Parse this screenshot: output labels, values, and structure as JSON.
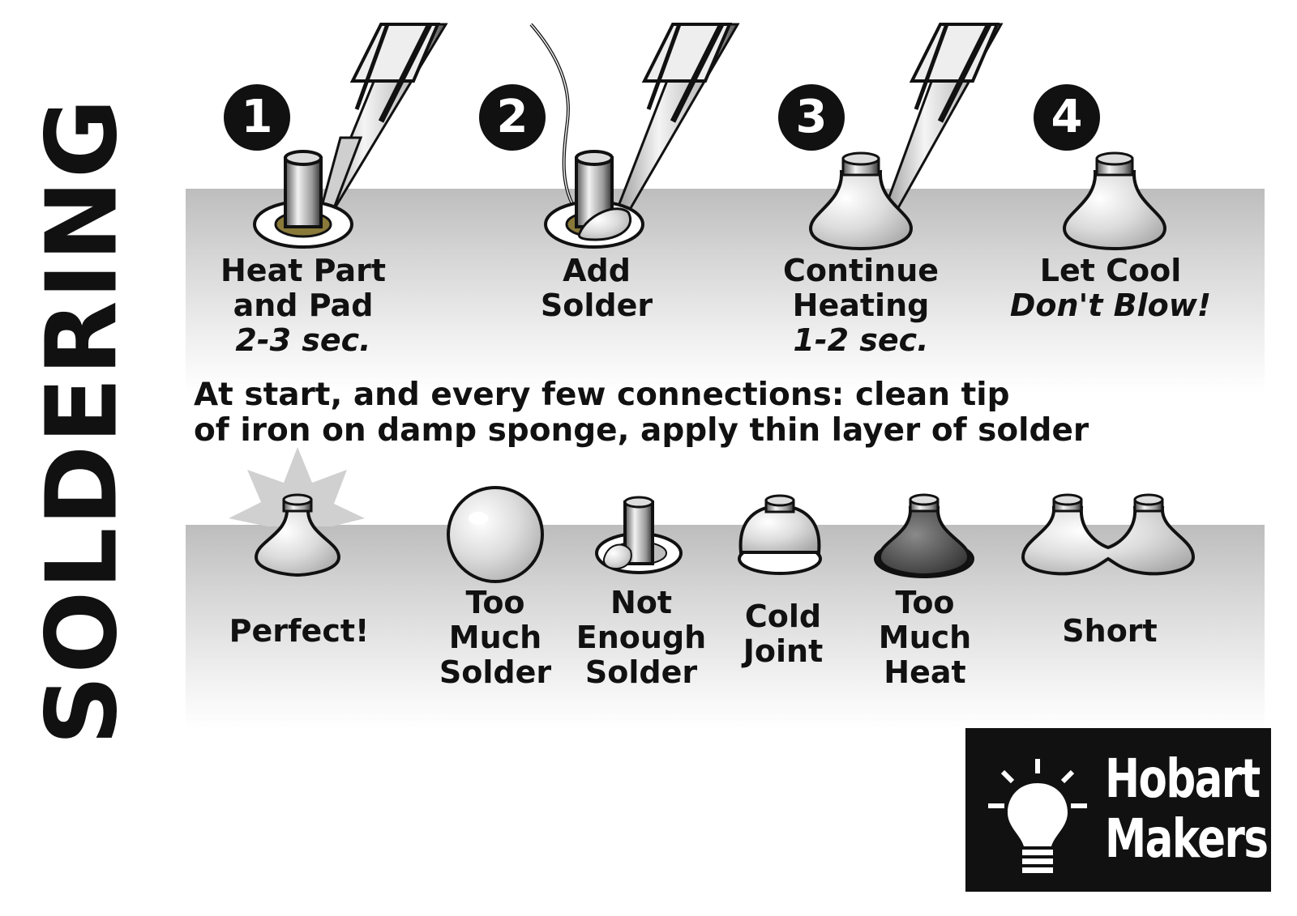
{
  "title": "SOLDERING",
  "steps": [
    {
      "number": "1",
      "lines": [
        "Heat Part",
        "and Pad"
      ],
      "detail": "2-3 sec."
    },
    {
      "number": "2",
      "lines": [
        "Add",
        "Solder"
      ],
      "detail": ""
    },
    {
      "number": "3",
      "lines": [
        "Continue",
        "Heating"
      ],
      "detail": "1-2 sec."
    },
    {
      "number": "4",
      "lines": [
        "Let Cool"
      ],
      "detail": "Don't Blow!"
    }
  ],
  "note": {
    "line1": "At start, and every few connections: clean tip",
    "line2": "of iron on damp sponge, apply thin layer of solder"
  },
  "joints": [
    {
      "lines": [
        "Perfect!"
      ]
    },
    {
      "lines": [
        "Too",
        "Much",
        "Solder"
      ]
    },
    {
      "lines": [
        "Not",
        "Enough",
        "Solder"
      ]
    },
    {
      "lines": [
        "Cold",
        "Joint"
      ]
    },
    {
      "lines": [
        "Too",
        "Much",
        "Heat"
      ]
    },
    {
      "lines": [
        "Short"
      ]
    }
  ],
  "logo": {
    "line1": "Hobart",
    "line2": "Makers"
  },
  "colors": {
    "ink": "#111111",
    "band": "#c8c8c8",
    "metal": "#d9d9d9"
  }
}
